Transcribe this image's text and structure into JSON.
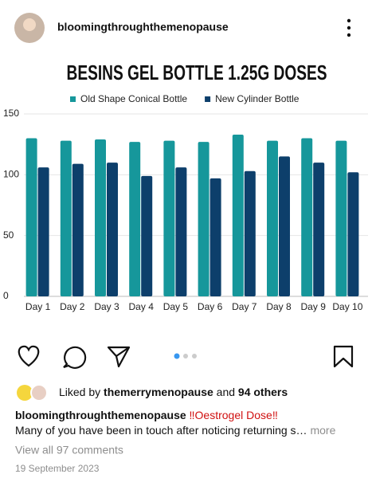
{
  "post": {
    "username": "bloomingthroughthemenopause",
    "liked_by": {
      "prefix": "Liked by",
      "user": "themerrymenopause",
      "middle": "and",
      "others": "94 others"
    },
    "caption": {
      "username": "bloomingthroughthemenopause",
      "headline": "‼Oestrogel Dose‼",
      "text": "Many of you have been in touch after noticing returning s…",
      "more": "more"
    },
    "comments": "View all 97 comments",
    "date": "19 September 2023"
  },
  "chart_data": {
    "type": "bar",
    "title": "BESINS GEL BOTTLE 1.25G DOSES",
    "categories": [
      "Day 1",
      "Day 2",
      "Day 3",
      "Day 4",
      "Day 5",
      "Day 6",
      "Day 7",
      "Day 8",
      "Day 9",
      "Day 10"
    ],
    "series": [
      {
        "name": "Old Shape Conical Bottle",
        "color": "#16979b",
        "values": [
          130,
          128,
          129,
          127,
          128,
          127,
          133,
          128,
          130,
          128
        ]
      },
      {
        "name": "New Cylinder Bottle",
        "color": "#0d3f6b",
        "values": [
          106,
          109,
          110,
          99,
          106,
          97,
          103,
          115,
          110,
          102
        ]
      }
    ],
    "ylim": [
      0,
      150
    ],
    "yticks": [
      0,
      50,
      100,
      150
    ],
    "grid": true,
    "legend": "top"
  }
}
